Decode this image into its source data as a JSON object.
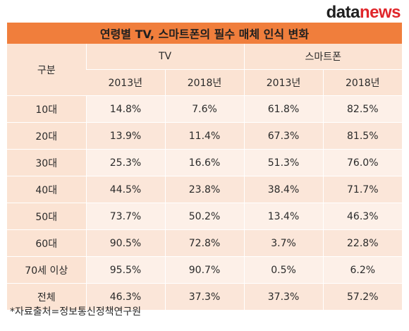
{
  "logo": {
    "part1": "data",
    "part2": "news"
  },
  "title": "연령별 TV, 스마트폰의 필수 매체 인식 변화",
  "table": {
    "corner_label": "구분",
    "groups": [
      "TV",
      "스마트폰"
    ],
    "years": [
      "2013년",
      "2018년",
      "2013년",
      "2018년"
    ],
    "rows": [
      {
        "label": "10대",
        "values": [
          "14.8%",
          "7.6%",
          "61.8%",
          "82.5%"
        ]
      },
      {
        "label": "20대",
        "values": [
          "13.9%",
          "11.4%",
          "67.3%",
          "81.5%"
        ]
      },
      {
        "label": "30대",
        "values": [
          "25.3%",
          "16.6%",
          "51.3%",
          "76.0%"
        ]
      },
      {
        "label": "40대",
        "values": [
          "44.5%",
          "23.8%",
          "38.4%",
          "71.7%"
        ]
      },
      {
        "label": "50대",
        "values": [
          "73.7%",
          "50.2%",
          "13.4%",
          "46.3%"
        ]
      },
      {
        "label": "60대",
        "values": [
          "90.5%",
          "72.8%",
          "3.7%",
          "22.8%"
        ]
      },
      {
        "label": "70세 이상",
        "values": [
          "95.5%",
          "90.7%",
          "0.5%",
          "6.2%"
        ]
      },
      {
        "label": "전체",
        "values": [
          "46.3%",
          "37.3%",
          "37.3%",
          "57.2%"
        ]
      }
    ]
  },
  "source": "*자료출처=정보통신정책연구원",
  "colors": {
    "title_bg": "#f07e3c",
    "header_bg": "#fbe3d3",
    "logo_accent": "#e0262b"
  }
}
